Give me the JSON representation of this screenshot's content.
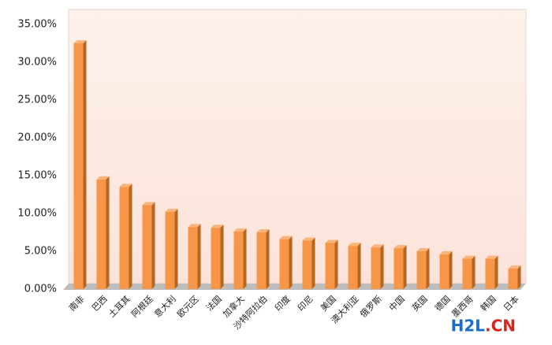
{
  "chart_data": {
    "type": "bar3d",
    "categories": [
      "南非",
      "巴西",
      "土耳其",
      "阿根廷",
      "意大利",
      "欧元区",
      "法国",
      "加拿大",
      "沙特阿拉伯",
      "印度",
      "印尼",
      "美国",
      "澳大利亚",
      "俄罗斯",
      "中国",
      "英国",
      "德国",
      "墨西哥",
      "韩国",
      "日本"
    ],
    "values": [
      32.5,
      14.5,
      13.5,
      11.1,
      10.2,
      8.2,
      8.1,
      7.6,
      7.5,
      6.6,
      6.4,
      6.1,
      5.7,
      5.5,
      5.4,
      5.0,
      4.6,
      4.0,
      4.0,
      2.7
    ],
    "color": "#f79646",
    "ylim": [
      0,
      35
    ],
    "yticks": [
      {
        "value": 0,
        "label": "0.00%"
      },
      {
        "value": 5,
        "label": "5.00%"
      },
      {
        "value": 10,
        "label": "10.00%"
      },
      {
        "value": 15,
        "label": "15.00%"
      },
      {
        "value": 20,
        "label": "20.00%"
      },
      {
        "value": 25,
        "label": "25.00%"
      },
      {
        "value": 30,
        "label": "30.00%"
      },
      {
        "value": 35,
        "label": "35.00%"
      }
    ],
    "grid": false
  },
  "watermark": [
    "H2L",
    ".CN"
  ]
}
